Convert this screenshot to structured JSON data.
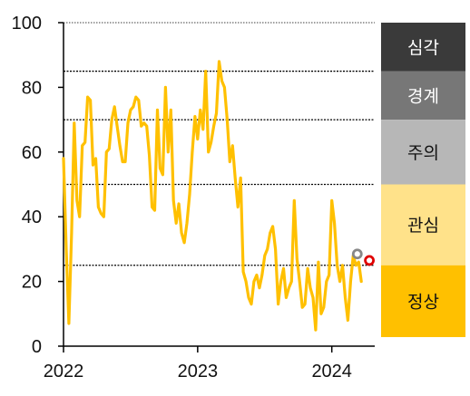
{
  "chart_data": {
    "type": "line",
    "ylim": [
      0,
      100
    ],
    "yticks": [
      0,
      20,
      40,
      60,
      80,
      100
    ],
    "xticks": [
      {
        "label": "2022",
        "value": 2022.0
      },
      {
        "label": "2023",
        "value": 2023.0
      },
      {
        "label": "2024",
        "value": 2024.0
      }
    ],
    "thresholds": [
      25,
      50,
      70,
      85,
      100
    ],
    "bands": [
      {
        "label": "심각",
        "from": 85,
        "to": 100,
        "color": "#3a3a3a",
        "text_color": "#ffffff"
      },
      {
        "label": "경계",
        "from": 70,
        "to": 85,
        "color": "#777777",
        "text_color": "#ffffff"
      },
      {
        "label": "주의",
        "from": 50,
        "to": 70,
        "color": "#b7b7b7",
        "text_color": "#111111"
      },
      {
        "label": "관심",
        "from": 25,
        "to": 50,
        "color": "#ffe28a",
        "text_color": "#111111"
      },
      {
        "label": "정상",
        "from": 0,
        "to": 25,
        "color": "#ffc000",
        "text_color": "#111111"
      }
    ],
    "series": [
      {
        "color": "#ffc000",
        "x": [
          2022.0,
          2022.02,
          2022.04,
          2022.06,
          2022.08,
          2022.1,
          2022.12,
          2022.14,
          2022.16,
          2022.18,
          2022.2,
          2022.22,
          2022.24,
          2022.26,
          2022.28,
          2022.3,
          2022.32,
          2022.34,
          2022.36,
          2022.38,
          2022.4,
          2022.42,
          2022.44,
          2022.46,
          2022.48,
          2022.5,
          2022.52,
          2022.54,
          2022.56,
          2022.58,
          2022.6,
          2022.62,
          2022.64,
          2022.66,
          2022.68,
          2022.7,
          2022.72,
          2022.74,
          2022.76,
          2022.78,
          2022.8,
          2022.82,
          2022.84,
          2022.86,
          2022.88,
          2022.9,
          2022.92,
          2022.94,
          2022.96,
          2022.98,
          2023.0,
          2023.02,
          2023.04,
          2023.06,
          2023.08,
          2023.1,
          2023.12,
          2023.14,
          2023.16,
          2023.18,
          2023.2,
          2023.22,
          2023.24,
          2023.26,
          2023.28,
          2023.3,
          2023.32,
          2023.34,
          2023.36,
          2023.38,
          2023.4,
          2023.42,
          2023.44,
          2023.46,
          2023.48,
          2023.5,
          2023.52,
          2023.54,
          2023.56,
          2023.58,
          2023.6,
          2023.62,
          2023.64,
          2023.66,
          2023.68,
          2023.7,
          2023.72,
          2023.74,
          2023.76,
          2023.78,
          2023.8,
          2023.82,
          2023.84,
          2023.86,
          2023.88,
          2023.9,
          2023.92,
          2023.94,
          2023.96,
          2023.98,
          2024.0,
          2024.02,
          2024.04,
          2024.06,
          2024.08,
          2024.1,
          2024.12,
          2024.14,
          2024.16,
          2024.18,
          2024.2,
          2024.22
        ],
        "y": [
          58,
          30,
          7,
          35,
          69,
          45,
          40,
          62,
          63,
          77,
          76,
          56,
          58,
          43,
          41,
          40,
          60,
          61,
          70,
          74,
          68,
          62,
          57,
          57,
          69,
          73,
          74,
          77,
          76,
          68,
          69,
          68,
          59,
          43,
          42,
          73,
          55,
          53,
          80,
          60,
          73,
          45,
          38,
          44,
          35,
          32,
          38,
          47,
          60,
          71,
          64,
          73,
          67,
          85,
          60,
          63,
          68,
          72,
          88,
          82,
          80,
          70,
          57,
          62,
          52,
          43,
          52,
          23,
          20,
          15,
          13,
          20,
          22,
          18,
          22,
          28,
          30,
          35,
          37,
          30,
          13,
          20,
          24,
          15,
          18,
          20,
          45,
          27,
          20,
          12,
          13,
          24,
          18,
          15,
          5,
          26,
          10,
          12,
          20,
          22,
          45,
          38,
          25,
          20,
          25,
          15,
          8,
          20,
          28,
          25,
          26,
          20
        ]
      }
    ],
    "markers": [
      {
        "x": 2024.19,
        "y": 28.5,
        "stroke": "#888888"
      },
      {
        "x": 2024.28,
        "y": 26.5,
        "stroke": "#e00000"
      }
    ]
  }
}
